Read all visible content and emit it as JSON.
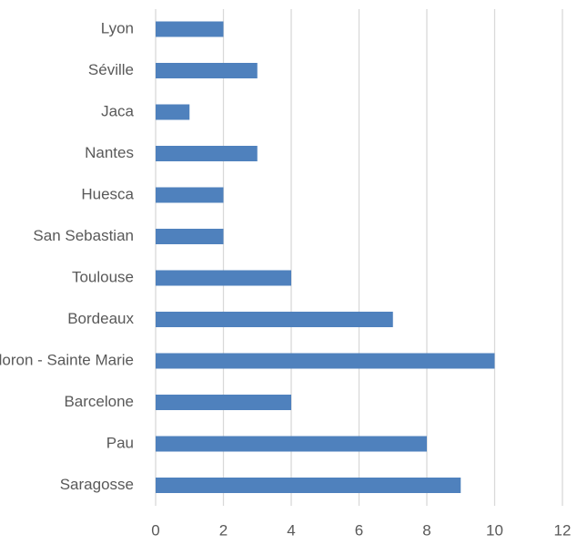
{
  "chart_data": {
    "type": "barh",
    "categories": [
      "Lyon",
      "Séville",
      "Jaca",
      "Nantes",
      "Huesca",
      "San Sebastian",
      "Toulouse",
      "Bordeaux",
      "Oloron - Sainte Marie",
      "Barcelone",
      "Pau",
      "Saragosse"
    ],
    "values": [
      2,
      3,
      1,
      3,
      2,
      2,
      4,
      7,
      10,
      4,
      8,
      9
    ],
    "color": "#4f81bd",
    "xlim": [
      0,
      12
    ],
    "xticks": [
      0,
      2,
      4,
      6,
      8,
      10,
      12
    ],
    "grid": true
  }
}
